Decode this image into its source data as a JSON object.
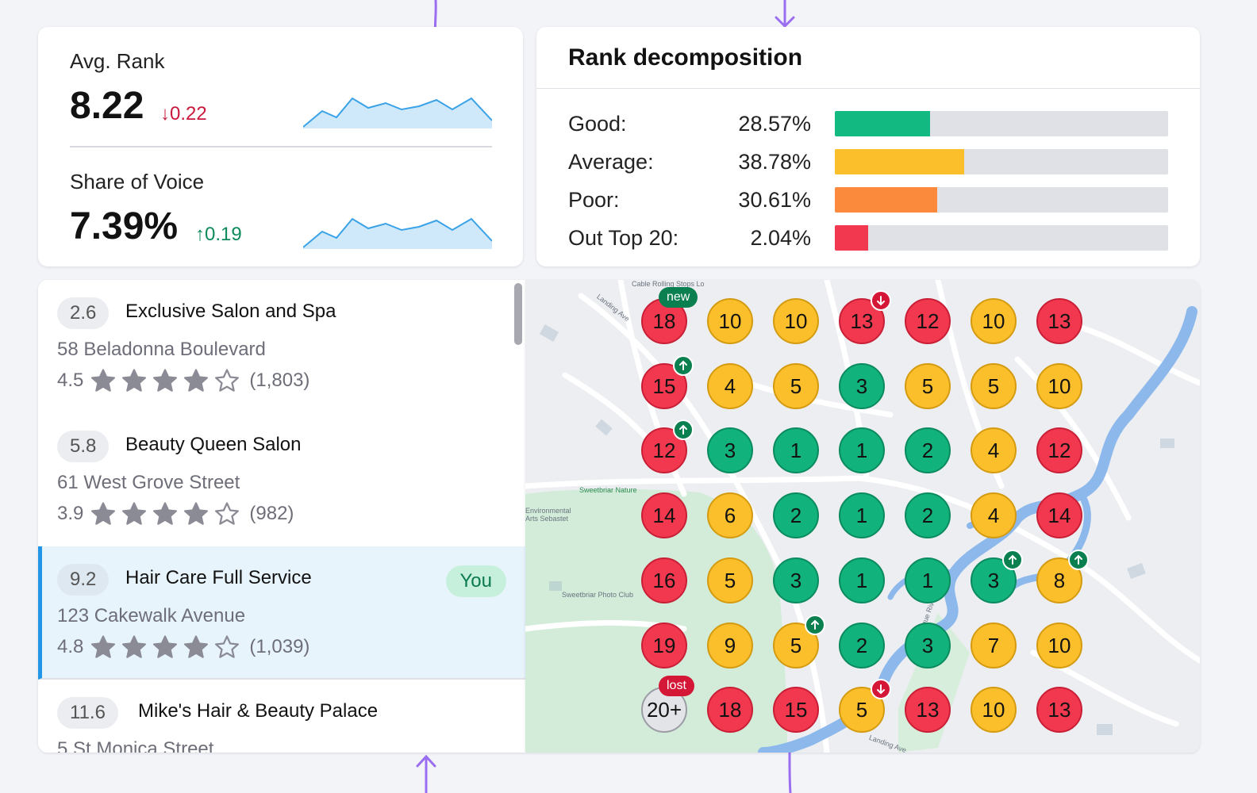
{
  "metrics": {
    "avg_rank": {
      "label": "Avg. Rank",
      "value": "8.22",
      "delta": "0.22",
      "direction": "down"
    },
    "share_of_voice": {
      "label": "Share of Voice",
      "value": "7.39%",
      "delta": "0.19",
      "direction": "up"
    }
  },
  "decomposition": {
    "title": "Rank decomposition",
    "rows": [
      {
        "label": "Good:",
        "value": "28.57%",
        "fraction": 0.2857,
        "color": "#12b981"
      },
      {
        "label": "Average:",
        "value": "38.78%",
        "fraction": 0.3878,
        "color": "#fbbf2c"
      },
      {
        "label": "Poor:",
        "value": "30.61%",
        "fraction": 0.3061,
        "color": "#fb8a3c"
      },
      {
        "label": "Out Top 20:",
        "value": "2.04%",
        "fraction": 0.0204,
        "color": "#f2384f"
      }
    ]
  },
  "listings": [
    {
      "score": "2.6",
      "name": "Exclusive Salon and Spa",
      "address": "58 Beladonna Boulevard",
      "rating": "4.5",
      "reviews": "(1,803)",
      "you": false
    },
    {
      "score": "5.8",
      "name": "Beauty Queen Salon",
      "address": "61 West Grove Street",
      "rating": "3.9",
      "reviews": "(982)",
      "you": false
    },
    {
      "score": "9.2",
      "name": "Hair Care Full Service",
      "address": "123 Cakewalk Avenue",
      "rating": "4.8",
      "reviews": "(1,039)",
      "you": true,
      "you_label": "You"
    },
    {
      "score": "11.6",
      "name": "Mike's Hair & Beauty Palace",
      "address": "5 St Monica Street",
      "rating": "",
      "reviews": "",
      "you": false
    }
  ],
  "grid": {
    "rows": [
      [
        {
          "v": "18",
          "c": "red",
          "tag": "new"
        },
        {
          "v": "10",
          "c": "yellow"
        },
        {
          "v": "10",
          "c": "yellow"
        },
        {
          "v": "13",
          "c": "red",
          "mark": "down"
        },
        {
          "v": "12",
          "c": "red"
        },
        {
          "v": "10",
          "c": "yellow"
        },
        {
          "v": "13",
          "c": "red"
        }
      ],
      [
        {
          "v": "15",
          "c": "red",
          "mark": "up"
        },
        {
          "v": "4",
          "c": "yellow"
        },
        {
          "v": "5",
          "c": "yellow"
        },
        {
          "v": "3",
          "c": "green"
        },
        {
          "v": "5",
          "c": "yellow"
        },
        {
          "v": "5",
          "c": "yellow"
        },
        {
          "v": "10",
          "c": "yellow"
        }
      ],
      [
        {
          "v": "12",
          "c": "red",
          "mark": "up"
        },
        {
          "v": "3",
          "c": "green"
        },
        {
          "v": "1",
          "c": "green"
        },
        {
          "v": "1",
          "c": "green"
        },
        {
          "v": "2",
          "c": "green"
        },
        {
          "v": "4",
          "c": "yellow"
        },
        {
          "v": "12",
          "c": "red"
        }
      ],
      [
        {
          "v": "14",
          "c": "red"
        },
        {
          "v": "6",
          "c": "yellow"
        },
        {
          "v": "2",
          "c": "green"
        },
        {
          "v": "1",
          "c": "green"
        },
        {
          "v": "2",
          "c": "green"
        },
        {
          "v": "4",
          "c": "yellow"
        },
        {
          "v": "14",
          "c": "red"
        }
      ],
      [
        {
          "v": "16",
          "c": "red"
        },
        {
          "v": "5",
          "c": "yellow"
        },
        {
          "v": "3",
          "c": "green"
        },
        {
          "v": "1",
          "c": "green"
        },
        {
          "v": "1",
          "c": "green"
        },
        {
          "v": "3",
          "c": "green",
          "mark": "up"
        },
        {
          "v": "8",
          "c": "yellow",
          "mark": "up"
        }
      ],
      [
        {
          "v": "19",
          "c": "red"
        },
        {
          "v": "9",
          "c": "yellow"
        },
        {
          "v": "5",
          "c": "yellow",
          "mark": "up"
        },
        {
          "v": "2",
          "c": "green"
        },
        {
          "v": "3",
          "c": "green"
        },
        {
          "v": "7",
          "c": "yellow"
        },
        {
          "v": "10",
          "c": "yellow"
        }
      ],
      [
        {
          "v": "20+",
          "c": "grey",
          "tag": "lost"
        },
        {
          "v": "18",
          "c": "red"
        },
        {
          "v": "15",
          "c": "red"
        },
        {
          "v": "5",
          "c": "yellow",
          "mark": "down"
        },
        {
          "v": "13",
          "c": "red"
        },
        {
          "v": "10",
          "c": "yellow"
        },
        {
          "v": "13",
          "c": "red"
        }
      ]
    ]
  },
  "map_labels": [
    "Cable Rolling Stops Lo",
    "Landing Ave",
    "Sweetbriar Nature",
    "Environmental Arts Sebastet",
    "Sweetbriar Photo Club",
    "Nissequogue River",
    "Landing Ave"
  ]
}
